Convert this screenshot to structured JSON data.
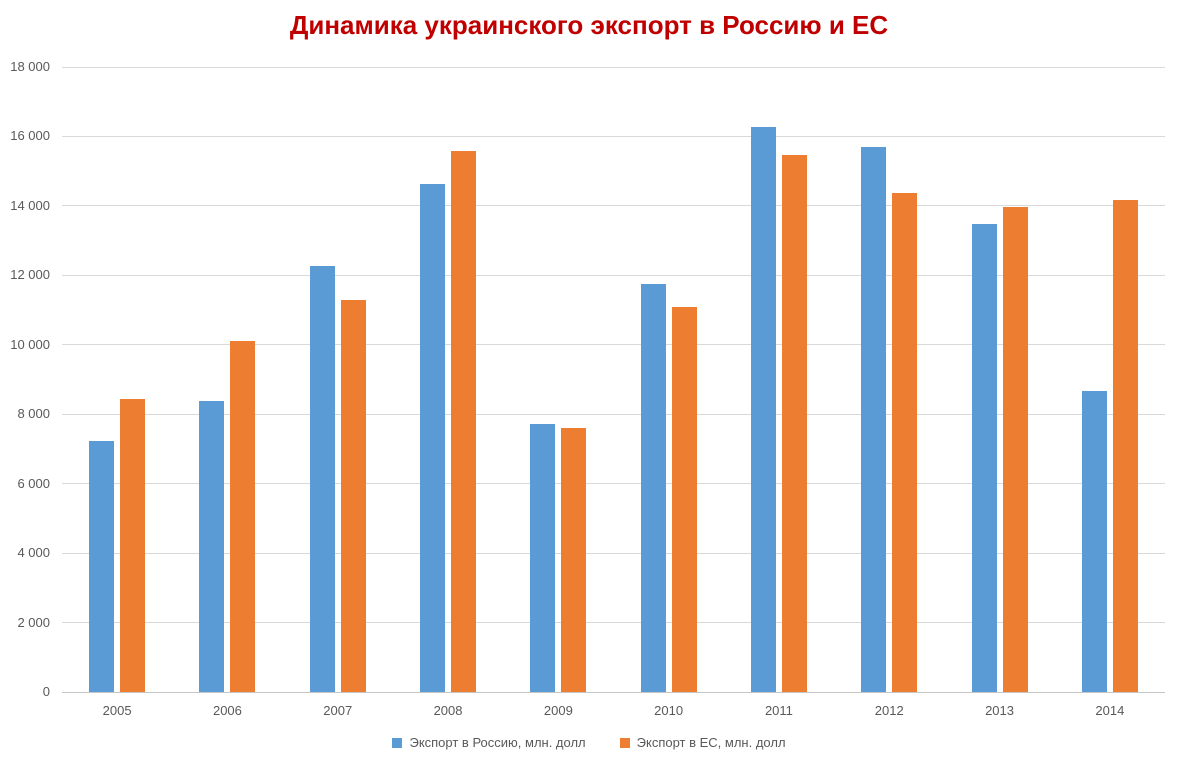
{
  "chart_data": {
    "type": "bar",
    "title": "Динамика украинского экспорт в Россию и ЕС",
    "title_color": "#c00000",
    "categories": [
      "2005",
      "2006",
      "2007",
      "2008",
      "2009",
      "2010",
      "2011",
      "2012",
      "2013",
      "2014"
    ],
    "series": [
      {
        "name": "Экспорт в Россию, млн. долл",
        "color": "#5b9bd5",
        "values": [
          7240,
          8390,
          12280,
          14640,
          7720,
          11760,
          16270,
          15710,
          13490,
          8670
        ]
      },
      {
        "name": "Экспорт в ЕС, млн. долл",
        "color": "#ed7d31",
        "values": [
          8450,
          10120,
          11300,
          15590,
          7600,
          11090,
          15460,
          14380,
          13960,
          14160
        ]
      }
    ],
    "xlabel": "",
    "ylabel": "",
    "ylim": [
      0,
      18000
    ],
    "ytick_step": 2000,
    "ytick_labels": [
      "0",
      "2 000",
      "4 000",
      "6 000",
      "8 000",
      "10 000",
      "12 000",
      "14 000",
      "16 000",
      "18 000"
    ],
    "grid": true,
    "gridline_color": "#d9d9d9",
    "axis_text_color": "#595959",
    "legend_position": "bottom"
  }
}
